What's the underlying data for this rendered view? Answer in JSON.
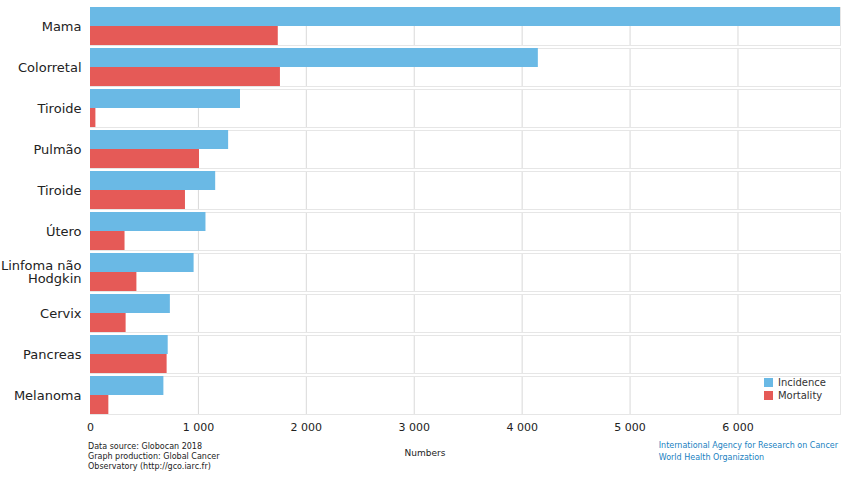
{
  "chart_data": {
    "type": "bar",
    "orientation": "horizontal",
    "categories": [
      "Mama",
      "Colorretal",
      "Tiroide",
      "Pulmão",
      "Tiroide",
      "Útero",
      "Linfoma não Hodgkin",
      "Cervix",
      "Pancreas",
      "Melanoma"
    ],
    "series": [
      {
        "name": "Incidence",
        "color": "#6ab9e5",
        "values": [
          6950,
          4150,
          1390,
          1280,
          1160,
          1070,
          960,
          740,
          720,
          680
        ]
      },
      {
        "name": "Mortality",
        "color": "#e55a57",
        "values": [
          1740,
          1760,
          50,
          1010,
          880,
          320,
          430,
          330,
          710,
          170
        ]
      }
    ],
    "x_label": "Numbers",
    "xlim": [
      0,
      6950
    ],
    "xticks": [
      0,
      {
        "value": 1000,
        "label": "1 000"
      },
      {
        "value": 2000,
        "label": "2 000"
      },
      {
        "value": 3000,
        "label": "3 000"
      },
      {
        "value": 4000,
        "label": "4 000"
      },
      {
        "value": 5000,
        "label": "5 000"
      },
      {
        "value": 6000,
        "label": "6 000"
      }
    ],
    "grid": true,
    "legend": "bottom-right",
    "annotations": [
      "Data source: Globocan 2018",
      "Graph production: Global Cancer",
      "Observatory (http://gco.iarc.fr)",
      "International Agency for Research on Cancer",
      "World Health Organization"
    ]
  }
}
